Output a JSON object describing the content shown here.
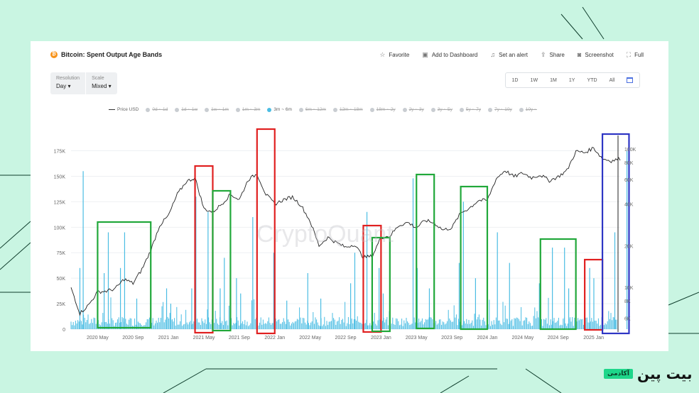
{
  "header": {
    "title": "Bitcoin: Spent Output Age Bands",
    "actions": [
      {
        "label": "Favorite",
        "icon": "star-icon"
      },
      {
        "label": "Add to Dashboard",
        "icon": "dashboard-icon"
      },
      {
        "label": "Set an alert",
        "icon": "bell-icon"
      },
      {
        "label": "Share",
        "icon": "share-icon"
      },
      {
        "label": "Screenshot",
        "icon": "camera-icon"
      },
      {
        "label": "Full",
        "icon": "fullscreen-icon"
      }
    ]
  },
  "controls": {
    "resolution_label": "Resolution",
    "resolution_value": "Day",
    "scale_label": "Scale",
    "scale_value": "Mixed",
    "ranges": [
      "1D",
      "1W",
      "1M",
      "1Y",
      "YTD",
      "All"
    ]
  },
  "legend": [
    {
      "label": "Price USD",
      "active": true,
      "kind": "line"
    },
    {
      "label": "0d ~ 1d",
      "active": false
    },
    {
      "label": "1d ~ 1w",
      "active": false
    },
    {
      "label": "1w ~ 1m",
      "active": false
    },
    {
      "label": "1m ~ 3m",
      "active": false
    },
    {
      "label": "3m ~ 6m",
      "active": true
    },
    {
      "label": "6m ~ 12m",
      "active": false
    },
    {
      "label": "12m ~ 18m",
      "active": false
    },
    {
      "label": "18m ~ 2y",
      "active": false
    },
    {
      "label": "2y ~ 3y",
      "active": false
    },
    {
      "label": "3y ~ 5y",
      "active": false
    },
    {
      "label": "5y ~ 7y",
      "active": false
    },
    {
      "label": "7y ~ 10y",
      "active": false
    },
    {
      "label": "10y ~",
      "active": false
    }
  ],
  "watermark": "CryptoQuant",
  "branding": {
    "main": "بیت پین",
    "badge": "آکادمی"
  },
  "chart_data": {
    "type": "line",
    "title": "Bitcoin: Spent Output Age Bands",
    "colors": {
      "price": "#222222",
      "band": "#4bbde3",
      "red": "#e02020",
      "green": "#21a83a",
      "blue": "#2e35c4"
    },
    "x_ticks": [
      "2020 May",
      "2020 Sep",
      "2021 Jan",
      "2021 May",
      "2021 Sep",
      "2022 Jan",
      "2022 May",
      "2022 Sep",
      "2023 Jan",
      "2023 May",
      "2023 Sep",
      "2024 Jan",
      "2024 May",
      "2024 Sep",
      "2025 Jan"
    ],
    "x_range": [
      "2020-02",
      "2025-04"
    ],
    "y_left": {
      "ticks": [
        0,
        25000,
        50000,
        75000,
        100000,
        125000,
        150000,
        175000
      ],
      "tick_labels": [
        "0",
        "25K",
        "50K",
        "75K",
        "100K",
        "125K",
        "150K",
        "175K"
      ],
      "range": [
        0,
        190000
      ]
    },
    "y_right": {
      "scale": "log",
      "tick_labels": [
        "100K",
        "80K",
        "60K",
        "40K",
        "20K",
        "10K",
        "8K",
        "6K"
      ],
      "ticks": [
        100000,
        80000,
        60000,
        40000,
        20000,
        10000,
        8000,
        6000
      ]
    },
    "series": [
      {
        "name": "Price USD",
        "axis": "right",
        "points": [
          [
            "2020-02",
            10000
          ],
          [
            "2020-03",
            6500
          ],
          [
            "2020-04",
            7500
          ],
          [
            "2020-05",
            9300
          ],
          [
            "2020-06",
            9400
          ],
          [
            "2020-07",
            9800
          ],
          [
            "2020-08",
            11500
          ],
          [
            "2020-09",
            10700
          ],
          [
            "2020-10",
            13500
          ],
          [
            "2020-11",
            18500
          ],
          [
            "2020-12",
            28000
          ],
          [
            "2021-01",
            33000
          ],
          [
            "2021-02",
            47000
          ],
          [
            "2021-03",
            58000
          ],
          [
            "2021-04",
            62000
          ],
          [
            "2021-05",
            37000
          ],
          [
            "2021-06",
            35000
          ],
          [
            "2021-07",
            40000
          ],
          [
            "2021-08",
            47000
          ],
          [
            "2021-09",
            43000
          ],
          [
            "2021-10",
            60000
          ],
          [
            "2021-11",
            66000
          ],
          [
            "2021-12",
            47000
          ],
          [
            "2022-01",
            40000
          ],
          [
            "2022-02",
            43000
          ],
          [
            "2022-03",
            45000
          ],
          [
            "2022-04",
            39000
          ],
          [
            "2022-05",
            30000
          ],
          [
            "2022-06",
            20000
          ],
          [
            "2022-07",
            23000
          ],
          [
            "2022-08",
            21000
          ],
          [
            "2022-09",
            19500
          ],
          [
            "2022-10",
            20500
          ],
          [
            "2022-11",
            16500
          ],
          [
            "2022-12",
            16800
          ],
          [
            "2023-01",
            23000
          ],
          [
            "2023-02",
            23500
          ],
          [
            "2023-03",
            28000
          ],
          [
            "2023-04",
            29500
          ],
          [
            "2023-05",
            27000
          ],
          [
            "2023-06",
            30500
          ],
          [
            "2023-07",
            29200
          ],
          [
            "2023-08",
            26000
          ],
          [
            "2023-09",
            27000
          ],
          [
            "2023-10",
            34500
          ],
          [
            "2023-11",
            37500
          ],
          [
            "2023-12",
            42500
          ],
          [
            "2024-01",
            42500
          ],
          [
            "2024-02",
            61000
          ],
          [
            "2024-03",
            70000
          ],
          [
            "2024-04",
            63000
          ],
          [
            "2024-05",
            67000
          ],
          [
            "2024-06",
            62000
          ],
          [
            "2024-07",
            65000
          ],
          [
            "2024-08",
            59000
          ],
          [
            "2024-09",
            63000
          ],
          [
            "2024-10",
            70000
          ],
          [
            "2024-11",
            96000
          ],
          [
            "2024-12",
            94000
          ],
          [
            "2025-01",
            102000
          ],
          [
            "2025-02",
            85000
          ],
          [
            "2025-03",
            82000
          ],
          [
            "2025-04",
            85000
          ]
        ]
      },
      {
        "name": "3m ~ 6m",
        "axis": "left",
        "baseline": 3000,
        "spikes": [
          [
            "2020-03",
            60000
          ],
          [
            "2020-03",
            155000
          ],
          [
            "2020-05",
            55000
          ],
          [
            "2020-06",
            95000
          ],
          [
            "2020-07",
            60000
          ],
          [
            "2020-08",
            95000
          ],
          [
            "2020-09",
            30000
          ],
          [
            "2020-12",
            40000
          ],
          [
            "2021-01",
            25000
          ],
          [
            "2021-03",
            40000
          ],
          [
            "2021-04",
            130000
          ],
          [
            "2021-05",
            115000
          ],
          [
            "2021-06",
            40000
          ],
          [
            "2021-07",
            70000
          ],
          [
            "2021-08",
            50000
          ],
          [
            "2021-09",
            35000
          ],
          [
            "2021-10",
            110000
          ],
          [
            "2021-12",
            75000
          ],
          [
            "2022-02",
            28000
          ],
          [
            "2022-04",
            55000
          ],
          [
            "2022-06",
            30000
          ],
          [
            "2022-09",
            45000
          ],
          [
            "2022-10",
            75000
          ],
          [
            "2022-11",
            115000
          ],
          [
            "2022-12",
            60000
          ],
          [
            "2023-01",
            35000
          ],
          [
            "2023-04",
            148000
          ],
          [
            "2023-05",
            60000
          ],
          [
            "2023-06",
            40000
          ],
          [
            "2023-09",
            65000
          ],
          [
            "2023-10",
            125000
          ],
          [
            "2023-11",
            50000
          ],
          [
            "2024-02",
            95000
          ],
          [
            "2024-03",
            65000
          ],
          [
            "2024-06",
            45000
          ],
          [
            "2024-08",
            80000
          ],
          [
            "2024-09",
            80000
          ],
          [
            "2024-10",
            40000
          ],
          [
            "2024-12",
            60000
          ],
          [
            "2025-01",
            50000
          ],
          [
            "2025-03",
            95000
          ],
          [
            "2025-04",
            175000
          ]
        ]
      }
    ],
    "annotations": [
      {
        "color": "green",
        "from": "2020-05",
        "to": "2020-10"
      },
      {
        "color": "red",
        "from": "2021-04",
        "to": "2021-05"
      },
      {
        "color": "green",
        "from": "2021-06",
        "to": "2021-07"
      },
      {
        "color": "red",
        "from": "2021-11",
        "to": "2021-12"
      },
      {
        "color": "red",
        "from": "2022-11",
        "to": "2022-12"
      },
      {
        "color": "green",
        "from": "2022-12",
        "to": "2023-01"
      },
      {
        "color": "green",
        "from": "2023-05",
        "to": "2023-06"
      },
      {
        "color": "green",
        "from": "2023-10",
        "to": "2023-12"
      },
      {
        "color": "green",
        "from": "2024-07",
        "to": "2024-10"
      },
      {
        "color": "red",
        "from": "2024-12",
        "to": "2025-01"
      },
      {
        "color": "blue",
        "from": "2025-02",
        "to": "2025-04"
      }
    ]
  }
}
